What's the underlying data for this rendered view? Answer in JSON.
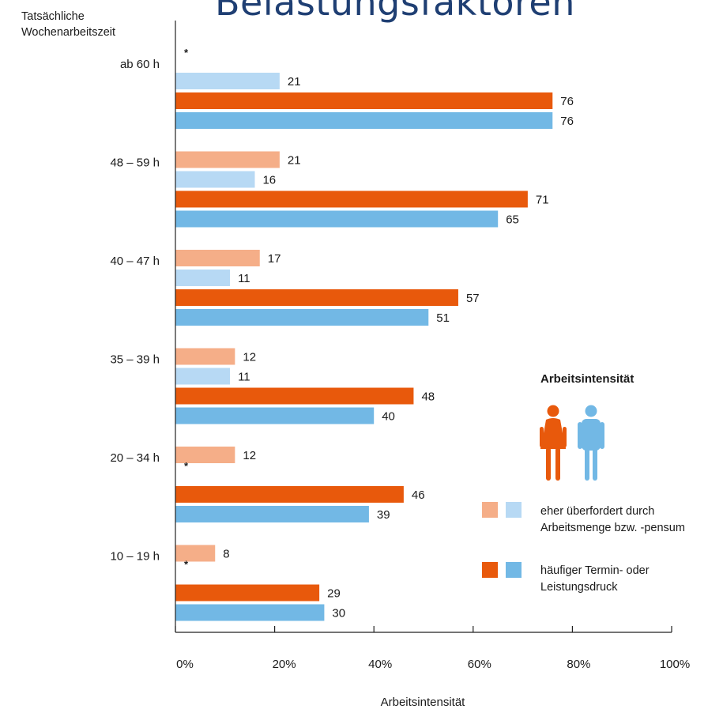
{
  "header": {
    "title_fragment": "Belastungsfaktoren"
  },
  "chart_data": {
    "type": "bar",
    "orientation": "horizontal",
    "title": "",
    "ylabel": "Tatsächliche Wochenarbeitszeit",
    "ylabel_lines": [
      "Tatsächliche",
      "Wochenarbeitszeit"
    ],
    "xlabel": "Arbeitsintensität",
    "xlim": [
      0,
      100
    ],
    "xticks": [
      "0%",
      "20%",
      "40%",
      "60%",
      "80%",
      "100%"
    ],
    "categories": [
      "ab 60 h",
      "48 – 59 h",
      "40 – 47 h",
      "35 – 39 h",
      "20 – 34 h",
      "10 – 19 h"
    ],
    "series": [
      {
        "group": "eher überfordert durch Arbeitsmenge bzw. -pensum",
        "gender": "female",
        "color": "#f5ae88",
        "values": [
          null,
          21,
          17,
          12,
          12,
          8
        ]
      },
      {
        "group": "eher überfordert durch Arbeitsmenge bzw. -pensum",
        "gender": "male",
        "color": "#b7d9f4",
        "values": [
          21,
          16,
          11,
          11,
          null,
          null
        ]
      },
      {
        "group": "häufiger Termin- oder Leistungsdruck",
        "gender": "female",
        "color": "#e8590c",
        "values": [
          76,
          71,
          57,
          48,
          46,
          29
        ]
      },
      {
        "group": "häufiger Termin- oder Leistungsdruck",
        "gender": "male",
        "color": "#72b8e5",
        "values": [
          76,
          65,
          51,
          40,
          39,
          30
        ]
      }
    ],
    "missing_marker": "*",
    "grid": false,
    "legend": {
      "title": "Arbeitsintensität",
      "placement": "right",
      "entries": [
        {
          "label_lines": [
            "eher überfordert durch",
            "Arbeitsmenge bzw. -pensum"
          ],
          "colors": [
            "#f5ae88",
            "#b7d9f4"
          ]
        },
        {
          "label_lines": [
            "häufiger Termin- oder",
            "Leistungsdruck"
          ],
          "colors": [
            "#e8590c",
            "#72b8e5"
          ]
        }
      ],
      "icons": [
        "woman-icon",
        "man-icon"
      ]
    }
  }
}
